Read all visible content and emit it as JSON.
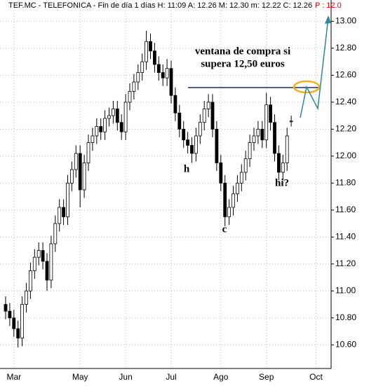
{
  "chart_data": {
    "type": "candlestick",
    "title": "TEF.MC - TELEFONICA - Fin de día 1 días H: 11:09 A: 12.26 M: 12.30 m: 12.22 C: 12.26",
    "subtitle": "P : 12.0",
    "annotations": [
      "ventana de compra si",
      "supera 12,50 euros",
      "h",
      "c",
      "hi?"
    ],
    "categories": [
      null,
      null,
      "Mar",
      null,
      null,
      null,
      null,
      null,
      null,
      null,
      null,
      null,
      null,
      null,
      null,
      null,
      null,
      null,
      "May",
      null,
      null,
      null,
      null,
      null,
      null,
      null,
      null,
      null,
      null,
      "Jun",
      null,
      null,
      null,
      null,
      null,
      null,
      null,
      null,
      null,
      null,
      "Jul",
      null,
      null,
      null,
      null,
      null,
      null,
      null,
      null,
      null,
      null,
      null,
      "Ago",
      null,
      null,
      null,
      null,
      null,
      null,
      null,
      null,
      null,
      null,
      "Sep",
      null,
      null,
      null,
      null,
      null,
      null,
      null,
      null,
      null,
      null,
      null,
      "Oct"
    ],
    "open": [
      10.9,
      10.85,
      10.8,
      10.72,
      10.65,
      10.9,
      11.0,
      11.15,
      11.25,
      11.3,
      11.22,
      11.08,
      11.35,
      11.5,
      11.62,
      11.55,
      11.8,
      11.9,
      12.02,
      11.75,
      11.95,
      12.1,
      12.15,
      12.22,
      12.18,
      12.28,
      12.3,
      12.35,
      12.25,
      12.18,
      12.4,
      12.48,
      12.55,
      12.62,
      12.7,
      12.85,
      12.78,
      12.68,
      12.62,
      12.58,
      12.65,
      12.45,
      12.32,
      12.2,
      12.12,
      12.08,
      12.02,
      12.15,
      12.25,
      12.35,
      12.4,
      12.2,
      11.95,
      11.8,
      11.55,
      11.62,
      11.72,
      11.8,
      11.88,
      11.98,
      12.1,
      12.15,
      12.2,
      12.12,
      12.38,
      12.25,
      12.02,
      11.88,
      11.95,
      12.26,
      null,
      null,
      null,
      null,
      null,
      null
    ],
    "high": [
      10.96,
      10.91,
      10.86,
      10.78,
      10.96,
      11.06,
      11.21,
      11.31,
      11.36,
      11.36,
      11.28,
      11.41,
      11.56,
      11.68,
      11.68,
      11.86,
      11.96,
      12.08,
      12.08,
      12.01,
      12.16,
      12.21,
      12.28,
      12.28,
      12.34,
      12.36,
      12.41,
      12.41,
      12.31,
      12.46,
      12.54,
      12.61,
      12.68,
      12.76,
      12.93,
      12.91,
      12.84,
      12.74,
      12.68,
      12.72,
      12.71,
      12.51,
      12.38,
      12.26,
      12.18,
      12.14,
      12.21,
      12.31,
      12.41,
      12.46,
      12.46,
      12.26,
      12.01,
      11.86,
      11.68,
      11.78,
      11.86,
      11.94,
      12.04,
      12.16,
      12.21,
      12.26,
      12.26,
      12.47,
      12.44,
      12.31,
      12.08,
      12.01,
      12.21,
      12.3,
      null,
      null,
      null,
      null,
      null,
      null
    ],
    "low": [
      10.79,
      10.74,
      10.66,
      10.58,
      10.59,
      10.84,
      10.94,
      11.09,
      11.19,
      11.16,
      11.0,
      11.02,
      11.29,
      11.44,
      11.49,
      11.49,
      11.74,
      11.84,
      11.62,
      11.69,
      11.89,
      12.04,
      12.09,
      12.12,
      12.12,
      12.22,
      12.24,
      12.19,
      12.12,
      12.12,
      12.34,
      12.42,
      12.49,
      12.56,
      12.64,
      12.72,
      12.62,
      12.56,
      12.52,
      12.52,
      12.39,
      12.26,
      12.14,
      12.06,
      12.02,
      11.95,
      11.96,
      12.09,
      12.19,
      12.29,
      12.14,
      11.89,
      11.74,
      11.48,
      11.49,
      11.56,
      11.66,
      11.74,
      11.82,
      11.92,
      12.04,
      12.09,
      12.06,
      12.06,
      12.19,
      11.96,
      11.82,
      11.82,
      11.89,
      12.22,
      null,
      null,
      null,
      null,
      null,
      null
    ],
    "close": [
      10.85,
      10.8,
      10.72,
      10.65,
      10.9,
      11.0,
      11.15,
      11.25,
      11.3,
      11.22,
      11.08,
      11.35,
      11.5,
      11.62,
      11.55,
      11.8,
      11.9,
      12.02,
      11.75,
      11.95,
      12.1,
      12.15,
      12.22,
      12.18,
      12.28,
      12.3,
      12.35,
      12.25,
      12.18,
      12.4,
      12.48,
      12.55,
      12.62,
      12.7,
      12.85,
      12.78,
      12.68,
      12.62,
      12.58,
      12.65,
      12.45,
      12.32,
      12.2,
      12.12,
      12.08,
      12.02,
      12.15,
      12.25,
      12.35,
      12.4,
      12.2,
      11.95,
      11.8,
      11.55,
      11.62,
      11.72,
      11.8,
      11.88,
      11.98,
      12.1,
      12.15,
      12.2,
      12.12,
      12.38,
      12.25,
      12.02,
      11.88,
      11.95,
      12.15,
      12.26,
      null,
      null,
      null,
      null,
      null,
      null
    ],
    "ylim": [
      10.43,
      13.08
    ],
    "yticks": [
      {
        "value": 10.6,
        "label": "10.60"
      },
      {
        "value": 10.8,
        "label": "10.80"
      },
      {
        "value": 11,
        "label": "11.00"
      },
      {
        "value": 11.2,
        "label": "11.20"
      },
      {
        "value": 11.4,
        "label": "11.40"
      },
      {
        "value": 11.6,
        "label": "11.60"
      },
      {
        "value": 11.8,
        "label": "11.80"
      },
      {
        "value": 12,
        "label": "12.00"
      },
      {
        "value": 12.2,
        "label": "12.20"
      },
      {
        "value": 12.4,
        "label": "12.40"
      },
      {
        "value": 12.6,
        "label": "12.60"
      },
      {
        "value": 12.8,
        "label": "12.80"
      },
      {
        "value": 13,
        "label": "13.00"
      }
    ],
    "grid": true,
    "color": "#000000"
  }
}
